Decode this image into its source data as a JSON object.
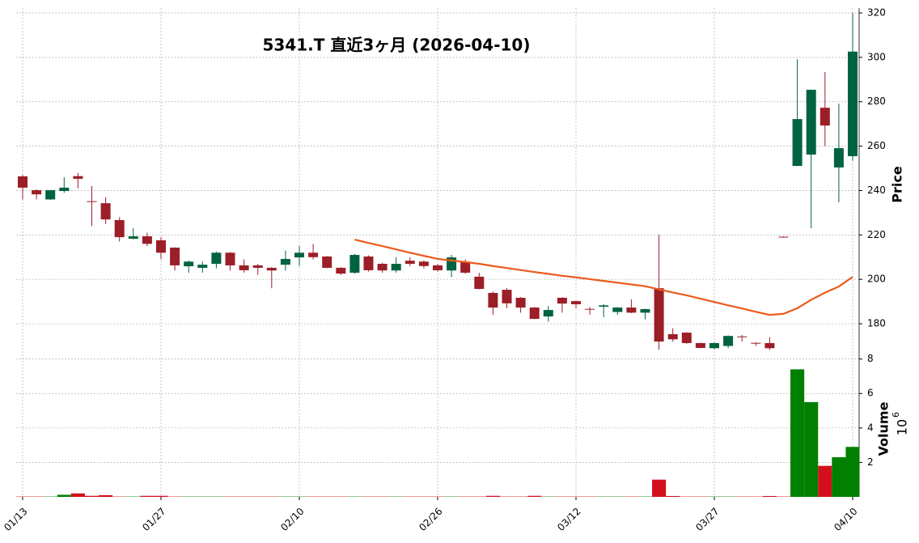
{
  "chart_data": {
    "type": "candlestick",
    "title": "5341.T  直近3ヶ月  (2026-04-10)",
    "categories": [
      "01/13",
      null,
      null,
      null,
      null,
      null,
      null,
      null,
      null,
      null,
      "01/27",
      null,
      null,
      null,
      null,
      null,
      null,
      null,
      null,
      null,
      "02/10",
      null,
      null,
      null,
      null,
      null,
      null,
      null,
      null,
      null,
      "02/26",
      null,
      null,
      null,
      null,
      null,
      null,
      null,
      null,
      null,
      "03/12",
      null,
      null,
      null,
      null,
      null,
      null,
      null,
      null,
      null,
      "03/27",
      null,
      null,
      null,
      null,
      null,
      null,
      null,
      null,
      null,
      "04/10"
    ],
    "open": [
      246.4,
      240.2,
      236,
      239.8,
      246.5,
      235.2,
      234.3,
      226.7,
      218.3,
      219.4,
      217.6,
      214.3,
      205.9,
      205.2,
      207,
      212,
      206.3,
      206.3,
      205.2,
      206.6,
      209.9,
      212,
      210.3,
      205.2,
      203,
      210.3,
      207,
      204,
      208.4,
      208,
      206.3,
      204,
      208,
      201.2,
      193.9,
      195.3,
      191.7,
      187.3,
      183.3,
      191.7,
      190.2,
      186.7,
      187.7,
      185.3,
      187.3,
      185,
      196,
      175.3,
      176,
      171.3,
      169,
      170,
      174.3,
      171.4,
      171.3,
      219.2,
      251.1,
      256.2,
      277.3,
      250.4,
      255.5
    ],
    "high": [
      247,
      240.5,
      240.2,
      246,
      248,
      242,
      237,
      228,
      223,
      221,
      219,
      214.5,
      208.5,
      208,
      212.5,
      212.3,
      209,
      207,
      205.5,
      213,
      215,
      216,
      210.5,
      205.5,
      211.5,
      210.8,
      207.5,
      210,
      210,
      208.5,
      207,
      211,
      209,
      203,
      194.5,
      196,
      192,
      187.5,
      188,
      192,
      190.5,
      187.5,
      188.8,
      187.5,
      191,
      186.8,
      220.1,
      178,
      176.2,
      171.5,
      171.5,
      174.8,
      175,
      171.6,
      174,
      219.4,
      299.2,
      285.4,
      293.4,
      279.2,
      320
    ],
    "low": [
      236,
      236,
      235.8,
      239,
      241,
      224,
      225,
      217,
      218,
      215,
      209,
      204,
      203,
      203,
      205,
      204,
      203,
      202,
      196,
      204,
      206,
      209,
      205,
      202,
      202.5,
      203.5,
      203,
      203,
      206,
      205,
      203.5,
      201,
      202.5,
      195.5,
      184,
      187,
      185,
      182,
      181,
      185,
      187,
      184,
      183,
      184,
      184.8,
      182,
      168.3,
      172,
      171,
      169,
      168.5,
      169,
      172,
      170,
      168.2,
      218.9,
      251,
      223,
      260,
      234.7,
      253.5
    ],
    "close": [
      241.3,
      238.3,
      240.2,
      241.3,
      245.3,
      235,
      227,
      219,
      219.4,
      216,
      212,
      206.3,
      208,
      206.6,
      212,
      206.3,
      204.1,
      205.2,
      204,
      209.2,
      212,
      210,
      205.2,
      202.6,
      211,
      204.1,
      204,
      207,
      207,
      206,
      204.1,
      209.9,
      203,
      195.7,
      187.3,
      189.2,
      187.3,
      182.2,
      186.2,
      189.1,
      188.8,
      186.5,
      188.3,
      187.3,
      185,
      186.6,
      172,
      173,
      171.3,
      169.1,
      171.3,
      174.5,
      174.1,
      171.2,
      169,
      219,
      272.2,
      285.4,
      269.3,
      259.1,
      302.6
    ],
    "up_color": "#006340",
    "down_color": "#9c1e27",
    "ylim": [
      168,
      320
    ],
    "yticks": [
      180,
      200,
      220,
      240,
      260,
      280,
      300,
      320
    ],
    "ylabel": "Price",
    "grid": true,
    "ma": {
      "color": "#ec5a1c",
      "values": [
        null,
        null,
        null,
        null,
        null,
        null,
        null,
        null,
        null,
        null,
        null,
        null,
        null,
        null,
        null,
        null,
        null,
        null,
        null,
        null,
        null,
        null,
        null,
        null,
        217.9,
        216.4,
        215,
        213.5,
        212,
        210.6,
        209.2,
        208.5,
        207.8,
        207,
        206,
        205.1,
        204.2,
        203.3,
        202.5,
        201.6,
        200.9,
        200.1,
        199.3,
        198.5,
        197.7,
        196.9,
        195.5,
        194.1,
        192.8,
        191.3,
        189.8,
        188.3,
        186.9,
        185.4,
        184,
        184.5,
        187,
        190.8,
        194,
        196.8,
        201.1
      ]
    },
    "volume": {
      "values": [
        0.02,
        0.02,
        0.02,
        0.12,
        0.2,
        0.06,
        0.1,
        0.02,
        0.02,
        0.06,
        0.06,
        0.02,
        0.02,
        0.02,
        0.02,
        0.02,
        0.02,
        0.02,
        0.02,
        0.02,
        0.02,
        0.02,
        0.02,
        0.02,
        0.02,
        0.02,
        0.02,
        0.02,
        0.02,
        0.02,
        0.02,
        0.02,
        0.02,
        0.02,
        0.06,
        0.02,
        0.02,
        0.06,
        0.02,
        0.02,
        0.02,
        0.02,
        0.02,
        0.02,
        0.02,
        0.02,
        1.0,
        0.05,
        0.02,
        0.02,
        0.02,
        0.02,
        0.02,
        0.02,
        0.05,
        0.02,
        7.4,
        5.5,
        1.8,
        2.3,
        2.9
      ],
      "up_color": "#007f00",
      "down_color": "#d2101b",
      "ylim": [
        0,
        8.5
      ],
      "yticks": [
        2,
        4,
        6,
        8
      ],
      "ylabel": "Volume",
      "offset_base": "10",
      "offset_exponent": "6"
    }
  }
}
